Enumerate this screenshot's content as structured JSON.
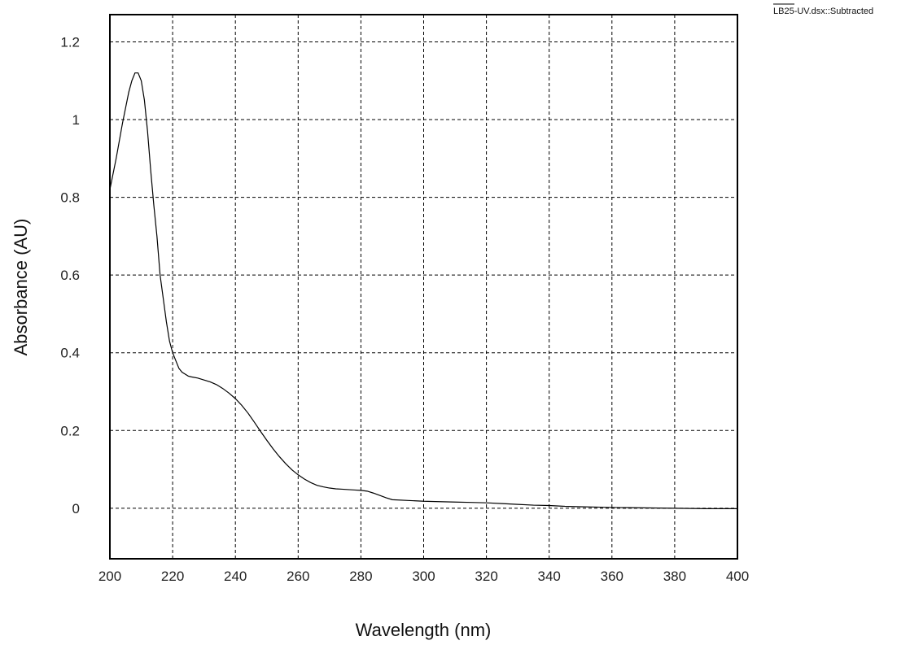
{
  "chart_data": {
    "type": "line",
    "title": "",
    "xlabel": "Wavelength (nm)",
    "ylabel": "Absorbance (AU)",
    "xlim": [
      200,
      400
    ],
    "ylim": [
      -0.13,
      1.27
    ],
    "xticks": [
      200,
      220,
      240,
      260,
      280,
      300,
      320,
      340,
      360,
      380,
      400
    ],
    "xtick_labels": [
      "200",
      "220",
      "240",
      "260",
      "280",
      "300",
      "320",
      "340",
      "360",
      "380",
      "400"
    ],
    "yticks": [
      0,
      0.2,
      0.4,
      0.6,
      0.8,
      1,
      1.2
    ],
    "ytick_labels": [
      "0",
      "0.2",
      "0.4",
      "0.6",
      "0.8",
      "1",
      "1.2"
    ],
    "grid": true,
    "legend_position": "top-right",
    "line_color": "#000000",
    "series": [
      {
        "name": "LB25-UV.dsx::Subtracted",
        "x": [
          200,
          202,
          204,
          206,
          207,
          208,
          209,
          210,
          211,
          212,
          213,
          214,
          215,
          216,
          217,
          218,
          219,
          220,
          221,
          222,
          223,
          224,
          225,
          226,
          228,
          230,
          232,
          234,
          236,
          238,
          240,
          242,
          244,
          246,
          248,
          250,
          252,
          254,
          256,
          258,
          260,
          262,
          264,
          266,
          268,
          270,
          272,
          274,
          276,
          278,
          280,
          282,
          284,
          286,
          288,
          290,
          295,
          300,
          305,
          310,
          315,
          320,
          325,
          330,
          335,
          340,
          345,
          350,
          355,
          360,
          365,
          370,
          375,
          380,
          385,
          390,
          395,
          400
        ],
        "y": [
          0.82,
          0.9,
          0.99,
          1.07,
          1.1,
          1.12,
          1.12,
          1.1,
          1.05,
          0.97,
          0.87,
          0.78,
          0.7,
          0.6,
          0.54,
          0.48,
          0.43,
          0.4,
          0.38,
          0.36,
          0.35,
          0.345,
          0.34,
          0.338,
          0.335,
          0.33,
          0.325,
          0.318,
          0.308,
          0.296,
          0.282,
          0.265,
          0.245,
          0.222,
          0.198,
          0.175,
          0.153,
          0.133,
          0.115,
          0.099,
          0.086,
          0.075,
          0.066,
          0.059,
          0.055,
          0.052,
          0.05,
          0.049,
          0.048,
          0.047,
          0.046,
          0.044,
          0.039,
          0.033,
          0.027,
          0.022,
          0.02,
          0.018,
          0.017,
          0.016,
          0.015,
          0.014,
          0.012,
          0.01,
          0.008,
          0.007,
          0.005,
          0.004,
          0.003,
          0.002,
          0.0015,
          0.001,
          0.0005,
          0.0,
          -0.0005,
          -0.001,
          -0.001,
          -0.001
        ]
      }
    ]
  }
}
